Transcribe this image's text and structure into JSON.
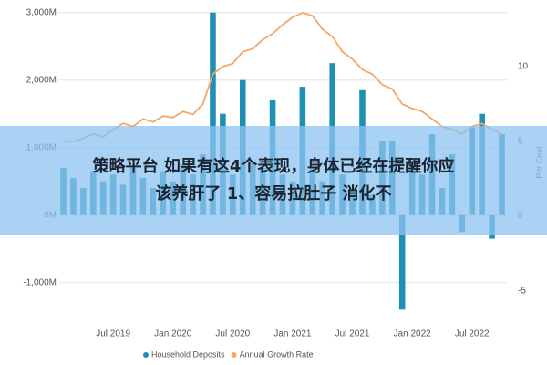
{
  "chart_data": {
    "type": "bar_line",
    "categories": [
      null,
      null,
      null,
      null,
      null,
      "Jul 2019",
      null,
      null,
      null,
      null,
      null,
      "Jan 2020",
      null,
      null,
      null,
      null,
      null,
      "Jul 2020",
      null,
      null,
      null,
      null,
      null,
      "Jan 2021",
      null,
      null,
      null,
      null,
      null,
      "Jul 2021",
      null,
      null,
      null,
      null,
      null,
      "Jan 2022",
      null,
      null,
      null,
      null,
      null,
      "Jul 2022",
      null,
      null,
      null
    ],
    "series": [
      {
        "name": "Household Deposits",
        "color": "#1f8fb3",
        "axis": "y",
        "values": [
          700,
          550,
          400,
          650,
          500,
          600,
          450,
          700,
          550,
          400,
          650,
          500,
          750,
          600,
          900,
          3000,
          1500,
          600,
          2000,
          800,
          700,
          1700,
          600,
          500,
          1900,
          700,
          500,
          2250,
          600,
          400,
          1850,
          300,
          1100,
          1100,
          -1400,
          800,
          600,
          1200,
          400,
          900,
          -250,
          1300,
          1500,
          -350,
          1200
        ]
      },
      {
        "name": "Annual Growth Rate",
        "color": "#f4a766",
        "axis": "y2",
        "values": [
          5.0,
          5.0,
          5.2,
          5.5,
          5.3,
          5.8,
          6.2,
          6.0,
          6.5,
          6.3,
          6.7,
          6.6,
          7.0,
          6.8,
          7.5,
          9.5,
          10.0,
          10.2,
          11.0,
          11.2,
          11.8,
          12.2,
          12.8,
          13.3,
          13.6,
          13.4,
          12.5,
          12.0,
          11.0,
          10.5,
          9.8,
          9.5,
          8.8,
          8.5,
          7.5,
          7.2,
          7.0,
          6.5,
          6.0,
          5.8,
          5.5,
          6.0,
          6.2,
          5.8,
          5.5
        ]
      }
    ],
    "ylim": [
      -1450,
      3050
    ],
    "yticks": [
      {
        "value": 3000,
        "label": "3,000M"
      },
      {
        "value": 2000,
        "label": "2,000M"
      },
      {
        "value": 1000,
        "label": "1,000M"
      },
      {
        "value": 0,
        "label": "0M"
      },
      {
        "value": -1000,
        "label": "-1,000M"
      }
    ],
    "y2lim": [
      -6.46,
      13.84
    ],
    "y2ticks": [
      10,
      5,
      0,
      -5
    ],
    "y2label": "Per Cent",
    "annotation": [
      "策略平台 如果有这4个表现，身体已经在提醒你应",
      "该养肝了 1、容易拉肚子 消化不"
    ]
  }
}
